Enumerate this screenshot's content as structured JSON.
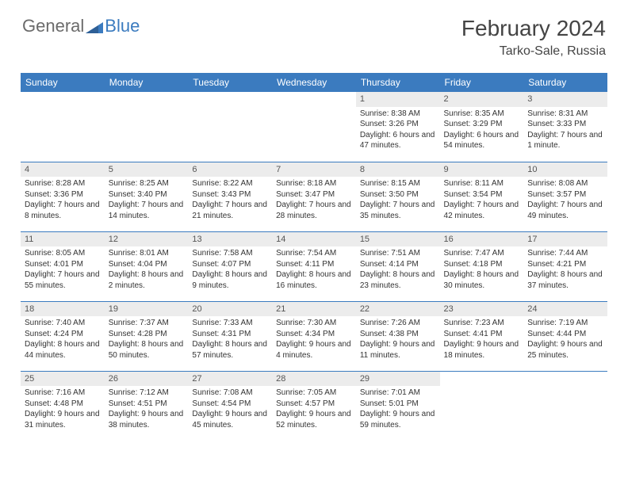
{
  "logo": {
    "general": "General",
    "blue": "Blue"
  },
  "title": "February 2024",
  "location": "Tarko-Sale, Russia",
  "colors": {
    "header_bg": "#3b7bbf",
    "header_text": "#ffffff",
    "daynum_bg": "#ececec",
    "border": "#3b7bbf",
    "body_text": "#333333"
  },
  "day_labels": [
    "Sunday",
    "Monday",
    "Tuesday",
    "Wednesday",
    "Thursday",
    "Friday",
    "Saturday"
  ],
  "weeks": [
    [
      {
        "n": "",
        "sr": "",
        "ss": "",
        "dl": ""
      },
      {
        "n": "",
        "sr": "",
        "ss": "",
        "dl": ""
      },
      {
        "n": "",
        "sr": "",
        "ss": "",
        "dl": ""
      },
      {
        "n": "",
        "sr": "",
        "ss": "",
        "dl": ""
      },
      {
        "n": "1",
        "sr": "Sunrise: 8:38 AM",
        "ss": "Sunset: 3:26 PM",
        "dl": "Daylight: 6 hours and 47 minutes."
      },
      {
        "n": "2",
        "sr": "Sunrise: 8:35 AM",
        "ss": "Sunset: 3:29 PM",
        "dl": "Daylight: 6 hours and 54 minutes."
      },
      {
        "n": "3",
        "sr": "Sunrise: 8:31 AM",
        "ss": "Sunset: 3:33 PM",
        "dl": "Daylight: 7 hours and 1 minute."
      }
    ],
    [
      {
        "n": "4",
        "sr": "Sunrise: 8:28 AM",
        "ss": "Sunset: 3:36 PM",
        "dl": "Daylight: 7 hours and 8 minutes."
      },
      {
        "n": "5",
        "sr": "Sunrise: 8:25 AM",
        "ss": "Sunset: 3:40 PM",
        "dl": "Daylight: 7 hours and 14 minutes."
      },
      {
        "n": "6",
        "sr": "Sunrise: 8:22 AM",
        "ss": "Sunset: 3:43 PM",
        "dl": "Daylight: 7 hours and 21 minutes."
      },
      {
        "n": "7",
        "sr": "Sunrise: 8:18 AM",
        "ss": "Sunset: 3:47 PM",
        "dl": "Daylight: 7 hours and 28 minutes."
      },
      {
        "n": "8",
        "sr": "Sunrise: 8:15 AM",
        "ss": "Sunset: 3:50 PM",
        "dl": "Daylight: 7 hours and 35 minutes."
      },
      {
        "n": "9",
        "sr": "Sunrise: 8:11 AM",
        "ss": "Sunset: 3:54 PM",
        "dl": "Daylight: 7 hours and 42 minutes."
      },
      {
        "n": "10",
        "sr": "Sunrise: 8:08 AM",
        "ss": "Sunset: 3:57 PM",
        "dl": "Daylight: 7 hours and 49 minutes."
      }
    ],
    [
      {
        "n": "11",
        "sr": "Sunrise: 8:05 AM",
        "ss": "Sunset: 4:01 PM",
        "dl": "Daylight: 7 hours and 55 minutes."
      },
      {
        "n": "12",
        "sr": "Sunrise: 8:01 AM",
        "ss": "Sunset: 4:04 PM",
        "dl": "Daylight: 8 hours and 2 minutes."
      },
      {
        "n": "13",
        "sr": "Sunrise: 7:58 AM",
        "ss": "Sunset: 4:07 PM",
        "dl": "Daylight: 8 hours and 9 minutes."
      },
      {
        "n": "14",
        "sr": "Sunrise: 7:54 AM",
        "ss": "Sunset: 4:11 PM",
        "dl": "Daylight: 8 hours and 16 minutes."
      },
      {
        "n": "15",
        "sr": "Sunrise: 7:51 AM",
        "ss": "Sunset: 4:14 PM",
        "dl": "Daylight: 8 hours and 23 minutes."
      },
      {
        "n": "16",
        "sr": "Sunrise: 7:47 AM",
        "ss": "Sunset: 4:18 PM",
        "dl": "Daylight: 8 hours and 30 minutes."
      },
      {
        "n": "17",
        "sr": "Sunrise: 7:44 AM",
        "ss": "Sunset: 4:21 PM",
        "dl": "Daylight: 8 hours and 37 minutes."
      }
    ],
    [
      {
        "n": "18",
        "sr": "Sunrise: 7:40 AM",
        "ss": "Sunset: 4:24 PM",
        "dl": "Daylight: 8 hours and 44 minutes."
      },
      {
        "n": "19",
        "sr": "Sunrise: 7:37 AM",
        "ss": "Sunset: 4:28 PM",
        "dl": "Daylight: 8 hours and 50 minutes."
      },
      {
        "n": "20",
        "sr": "Sunrise: 7:33 AM",
        "ss": "Sunset: 4:31 PM",
        "dl": "Daylight: 8 hours and 57 minutes."
      },
      {
        "n": "21",
        "sr": "Sunrise: 7:30 AM",
        "ss": "Sunset: 4:34 PM",
        "dl": "Daylight: 9 hours and 4 minutes."
      },
      {
        "n": "22",
        "sr": "Sunrise: 7:26 AM",
        "ss": "Sunset: 4:38 PM",
        "dl": "Daylight: 9 hours and 11 minutes."
      },
      {
        "n": "23",
        "sr": "Sunrise: 7:23 AM",
        "ss": "Sunset: 4:41 PM",
        "dl": "Daylight: 9 hours and 18 minutes."
      },
      {
        "n": "24",
        "sr": "Sunrise: 7:19 AM",
        "ss": "Sunset: 4:44 PM",
        "dl": "Daylight: 9 hours and 25 minutes."
      }
    ],
    [
      {
        "n": "25",
        "sr": "Sunrise: 7:16 AM",
        "ss": "Sunset: 4:48 PM",
        "dl": "Daylight: 9 hours and 31 minutes."
      },
      {
        "n": "26",
        "sr": "Sunrise: 7:12 AM",
        "ss": "Sunset: 4:51 PM",
        "dl": "Daylight: 9 hours and 38 minutes."
      },
      {
        "n": "27",
        "sr": "Sunrise: 7:08 AM",
        "ss": "Sunset: 4:54 PM",
        "dl": "Daylight: 9 hours and 45 minutes."
      },
      {
        "n": "28",
        "sr": "Sunrise: 7:05 AM",
        "ss": "Sunset: 4:57 PM",
        "dl": "Daylight: 9 hours and 52 minutes."
      },
      {
        "n": "29",
        "sr": "Sunrise: 7:01 AM",
        "ss": "Sunset: 5:01 PM",
        "dl": "Daylight: 9 hours and 59 minutes."
      },
      {
        "n": "",
        "sr": "",
        "ss": "",
        "dl": ""
      },
      {
        "n": "",
        "sr": "",
        "ss": "",
        "dl": ""
      }
    ]
  ]
}
